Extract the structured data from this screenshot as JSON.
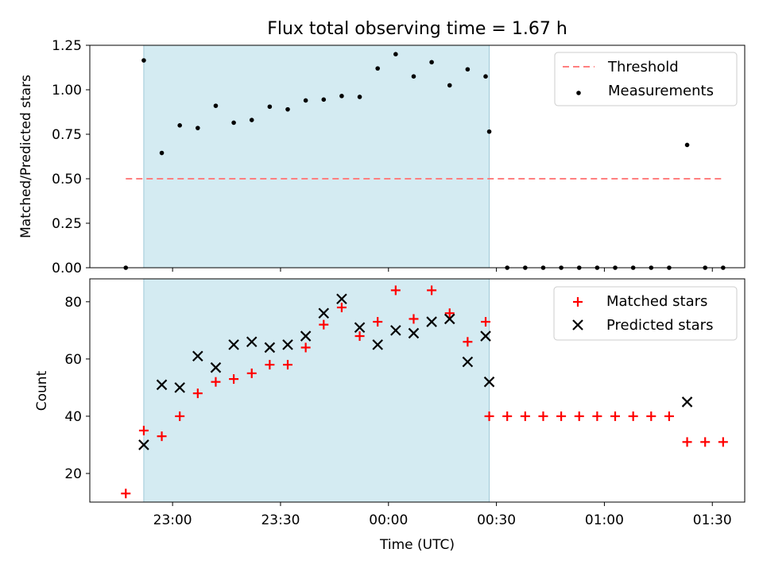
{
  "chart_data": [
    {
      "type": "scatter",
      "title": "Flux total observing time = 1.67 h",
      "xlabel": "",
      "ylabel": "Matched/Predicted stars",
      "ylim": [
        0,
        1.25
      ],
      "yticks": [
        "0.00",
        "0.25",
        "0.50",
        "0.75",
        "1.00",
        "1.25"
      ],
      "x_range": [
        "22:37",
        "01:39"
      ],
      "shaded_interval": [
        "22:52",
        "00:28"
      ],
      "threshold": {
        "name": "Threshold",
        "value": 0.5,
        "x_start": "22:47",
        "x_end": "01:33",
        "color": "#ff7f7f"
      },
      "legend_position": "top-right",
      "series": [
        {
          "name": "Measurements",
          "color": "#000000",
          "points": [
            [
              "22:47",
              0.0
            ],
            [
              "22:52",
              1.165
            ],
            [
              "22:57",
              0.645
            ],
            [
              "23:02",
              0.8
            ],
            [
              "23:07",
              0.785
            ],
            [
              "23:12",
              0.91
            ],
            [
              "23:17",
              0.815
            ],
            [
              "23:22",
              0.83
            ],
            [
              "23:27",
              0.905
            ],
            [
              "23:32",
              0.89
            ],
            [
              "23:37",
              0.94
            ],
            [
              "23:42",
              0.945
            ],
            [
              "23:47",
              0.965
            ],
            [
              "23:52",
              0.96
            ],
            [
              "23:57",
              1.12
            ],
            [
              "00:02",
              1.2
            ],
            [
              "00:07",
              1.075
            ],
            [
              "00:12",
              1.155
            ],
            [
              "00:17",
              1.025
            ],
            [
              "00:22",
              1.115
            ],
            [
              "00:27",
              1.075
            ],
            [
              "00:28",
              0.765
            ],
            [
              "00:33",
              0.0
            ],
            [
              "00:38",
              0.0
            ],
            [
              "00:43",
              0.0
            ],
            [
              "00:48",
              0.0
            ],
            [
              "00:53",
              0.0
            ],
            [
              "00:58",
              0.0
            ],
            [
              "01:03",
              0.0
            ],
            [
              "01:08",
              0.0
            ],
            [
              "01:13",
              0.0
            ],
            [
              "01:18",
              0.0
            ],
            [
              "01:23",
              0.69
            ],
            [
              "01:28",
              0.0
            ],
            [
              "01:33",
              0.0
            ]
          ]
        }
      ]
    },
    {
      "type": "scatter",
      "title": "",
      "xlabel": "Time (UTC)",
      "ylabel": "Count",
      "ylim": [
        10,
        88
      ],
      "yticks": [
        "20",
        "40",
        "60",
        "80"
      ],
      "xticks": [
        "23:00",
        "23:30",
        "00:00",
        "00:30",
        "01:00",
        "01:30"
      ],
      "x_range": [
        "22:37",
        "01:39"
      ],
      "shaded_interval": [
        "22:52",
        "00:28"
      ],
      "legend_position": "top-right",
      "series": [
        {
          "name": "Matched stars",
          "marker": "plus",
          "color": "#ff0000",
          "points": [
            [
              "22:47",
              13
            ],
            [
              "22:52",
              35
            ],
            [
              "22:57",
              33
            ],
            [
              "23:02",
              40
            ],
            [
              "23:07",
              48
            ],
            [
              "23:12",
              52
            ],
            [
              "23:17",
              53
            ],
            [
              "23:22",
              55
            ],
            [
              "23:27",
              58
            ],
            [
              "23:32",
              58
            ],
            [
              "23:37",
              64
            ],
            [
              "23:42",
              72
            ],
            [
              "23:47",
              78
            ],
            [
              "23:52",
              68
            ],
            [
              "23:57",
              73
            ],
            [
              "00:02",
              84
            ],
            [
              "00:07",
              74
            ],
            [
              "00:12",
              84
            ],
            [
              "00:17",
              76
            ],
            [
              "00:22",
              66
            ],
            [
              "00:27",
              73
            ],
            [
              "00:28",
              40
            ],
            [
              "00:33",
              40
            ],
            [
              "00:38",
              40
            ],
            [
              "00:43",
              40
            ],
            [
              "00:48",
              40
            ],
            [
              "00:53",
              40
            ],
            [
              "00:58",
              40
            ],
            [
              "01:03",
              40
            ],
            [
              "01:08",
              40
            ],
            [
              "01:13",
              40
            ],
            [
              "01:18",
              40
            ],
            [
              "01:23",
              31
            ],
            [
              "01:28",
              31
            ],
            [
              "01:33",
              31
            ]
          ]
        },
        {
          "name": "Predicted stars",
          "marker": "x",
          "color": "#000000",
          "points": [
            [
              "22:52",
              30
            ],
            [
              "22:57",
              51
            ],
            [
              "23:02",
              50
            ],
            [
              "23:07",
              61
            ],
            [
              "23:12",
              57
            ],
            [
              "23:17",
              65
            ],
            [
              "23:22",
              66
            ],
            [
              "23:27",
              64
            ],
            [
              "23:32",
              65
            ],
            [
              "23:37",
              68
            ],
            [
              "23:42",
              76
            ],
            [
              "23:47",
              81
            ],
            [
              "23:52",
              71
            ],
            [
              "23:57",
              65
            ],
            [
              "00:02",
              70
            ],
            [
              "00:07",
              69
            ],
            [
              "00:12",
              73
            ],
            [
              "00:17",
              74
            ],
            [
              "00:22",
              59
            ],
            [
              "00:27",
              68
            ],
            [
              "00:28",
              52
            ],
            [
              "01:23",
              45
            ]
          ]
        }
      ]
    }
  ]
}
